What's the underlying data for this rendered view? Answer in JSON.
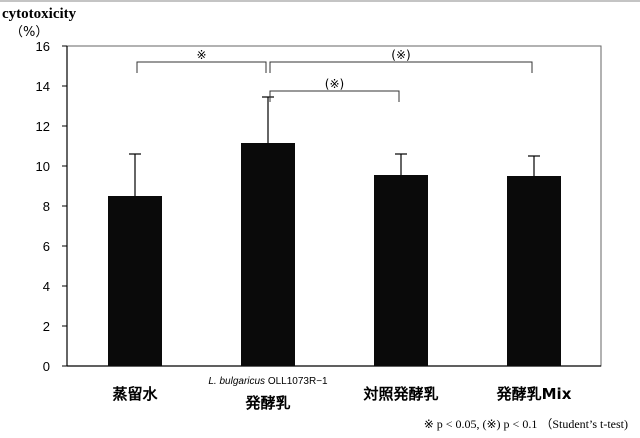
{
  "chart_data": {
    "type": "bar",
    "ylabel": "cytotoxicity",
    "yunit": "（%）",
    "ylim": [
      0,
      16
    ],
    "yticks": [
      0,
      2,
      4,
      6,
      8,
      10,
      12,
      14,
      16
    ],
    "grid": false,
    "categories": [
      {
        "label": "蒸留水",
        "sublabel": ""
      },
      {
        "label": "発酵乳",
        "sublabel_italic": "L. bulgaricus",
        "sublabel": "OLL1073R−1"
      },
      {
        "label": "対照発酵乳",
        "sublabel": ""
      },
      {
        "label": "発酵乳Mix",
        "sublabel": ""
      }
    ],
    "values": [
      8.5,
      11.15,
      9.55,
      9.5
    ],
    "error_upper": [
      10.6,
      13.45,
      10.6,
      10.5
    ],
    "significance": [
      {
        "from": 0,
        "to": 1,
        "label": "※",
        "level": 15.2
      },
      {
        "from": 1,
        "to": 3,
        "label": "(※)",
        "level": 15.2
      },
      {
        "from": 1,
        "to": 2,
        "label": "(※)",
        "level": 13.75
      }
    ],
    "footnote": "※ p < 0.05, (※) p < 0.1 （Student’s t-test)",
    "colors": {
      "bar": "#0a0a0a",
      "axis": "#555555",
      "text": "#000000"
    }
  }
}
